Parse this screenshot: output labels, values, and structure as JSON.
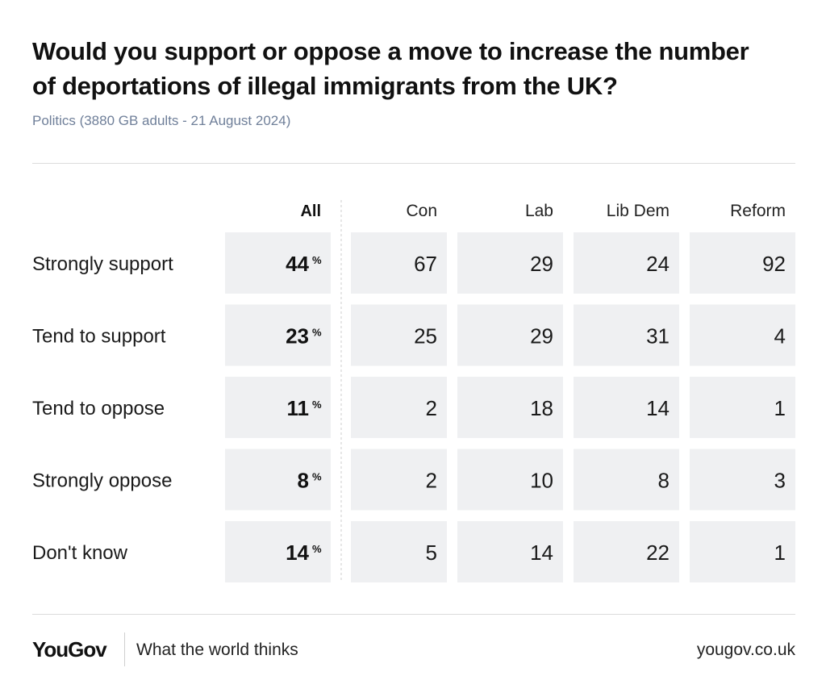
{
  "title_lines": [
    "Would you support or oppose a move to increase the number",
    "of deportations of illegal immigrants from the UK?"
  ],
  "subtitle": "Politics (3880 GB adults - 21 August 2024)",
  "chart_data": {
    "type": "table",
    "title": "Would you support or oppose a move to increase the number of deportations of illegal immigrants from the UK?",
    "columns": [
      "All",
      "Con",
      "Lab",
      "Lib Dem",
      "Reform"
    ],
    "rows": [
      "Strongly support",
      "Tend to support",
      "Tend to oppose",
      "Strongly oppose",
      "Don't know"
    ],
    "unit": "%",
    "values": [
      [
        44,
        67,
        29,
        24,
        92
      ],
      [
        23,
        25,
        29,
        31,
        4
      ],
      [
        11,
        2,
        18,
        14,
        1
      ],
      [
        8,
        2,
        10,
        8,
        3
      ],
      [
        14,
        5,
        14,
        22,
        1
      ]
    ]
  },
  "footer": {
    "logo": "YouGov",
    "tagline": "What the world thinks",
    "url": "yougov.co.uk"
  },
  "colors": {
    "cell_background": "#eff0f2",
    "subtitle": "#6f7f99"
  }
}
